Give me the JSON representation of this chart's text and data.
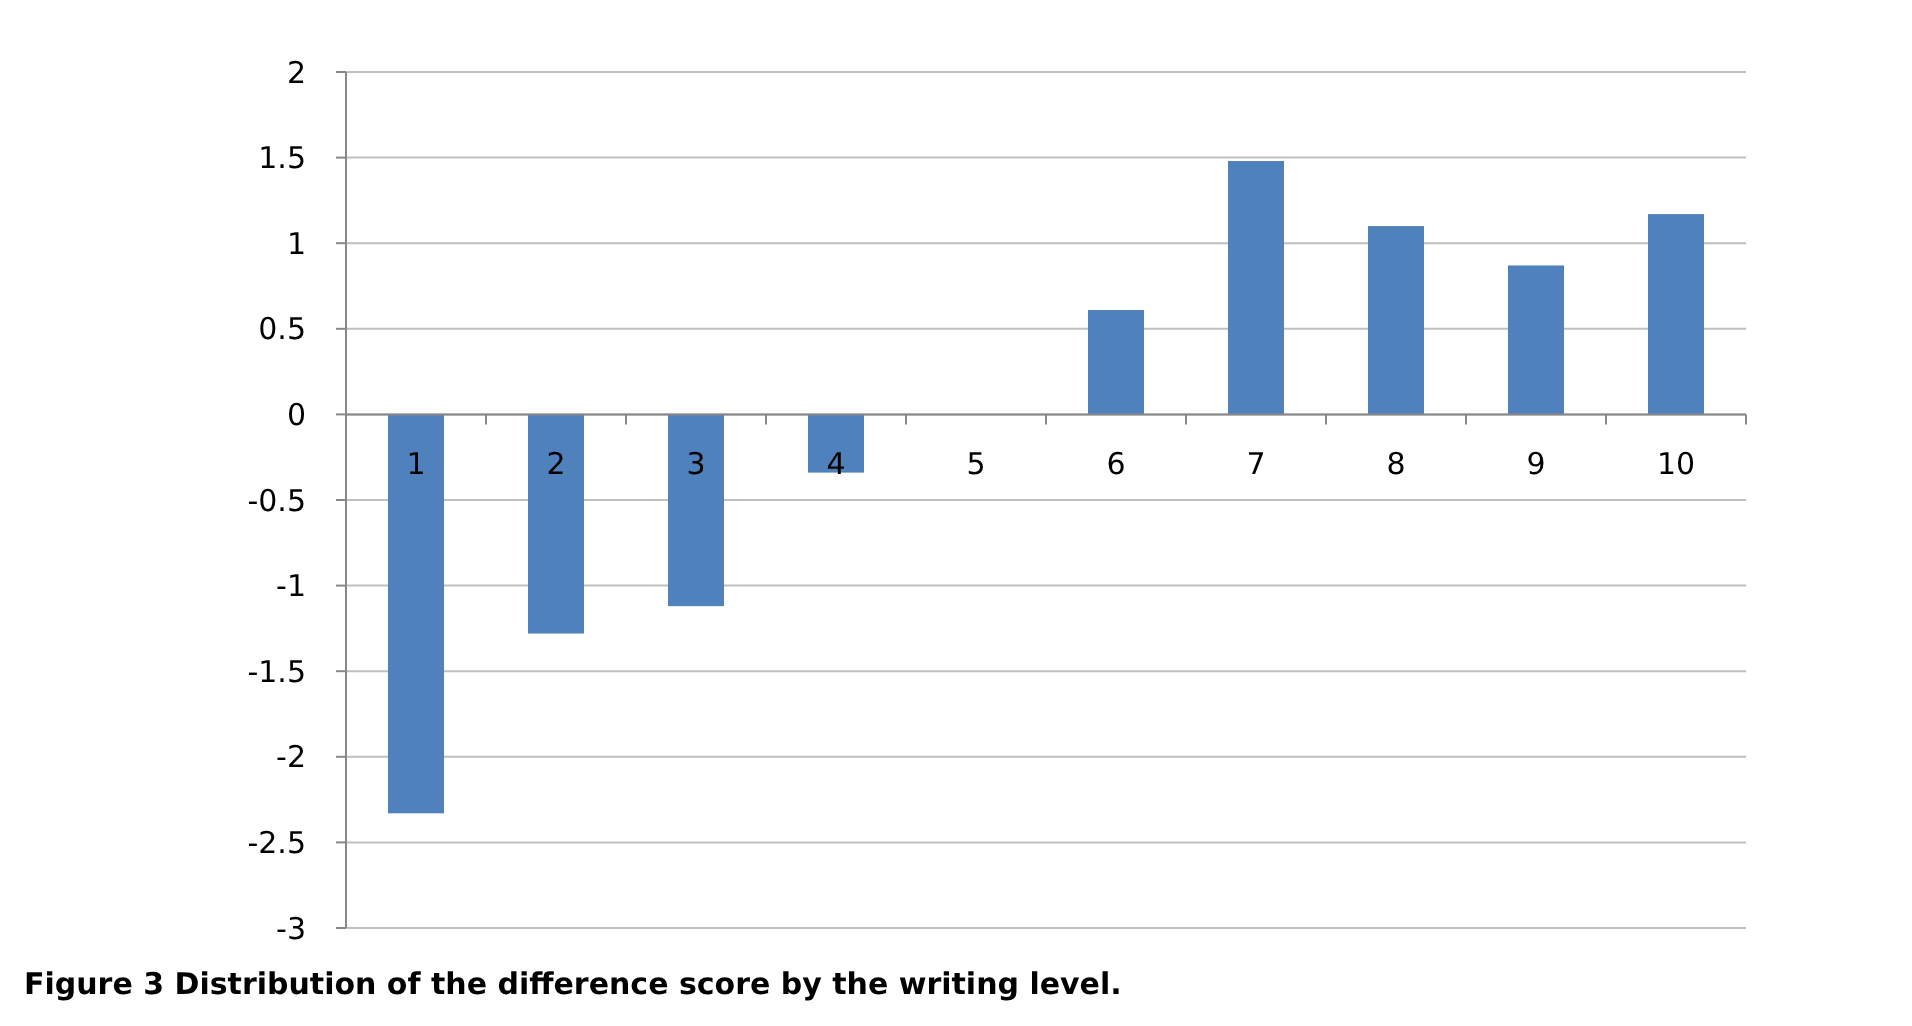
{
  "chart_data": {
    "type": "bar",
    "categories": [
      "1",
      "2",
      "3",
      "4",
      "5",
      "6",
      "7",
      "8",
      "9",
      "10"
    ],
    "values": [
      -2.33,
      -1.28,
      -1.12,
      -0.34,
      0,
      0.61,
      1.48,
      1.1,
      0.87,
      1.17
    ],
    "color": "#4f81bd",
    "ylim": [
      -3,
      2
    ],
    "yticks": [
      -3,
      -2.5,
      -2,
      -1.5,
      -1,
      -0.5,
      0,
      0.5,
      1,
      1.5,
      2
    ],
    "grid": "y",
    "annotations": [
      "Figure 3 Distribution of the difference score by the writing level."
    ]
  }
}
